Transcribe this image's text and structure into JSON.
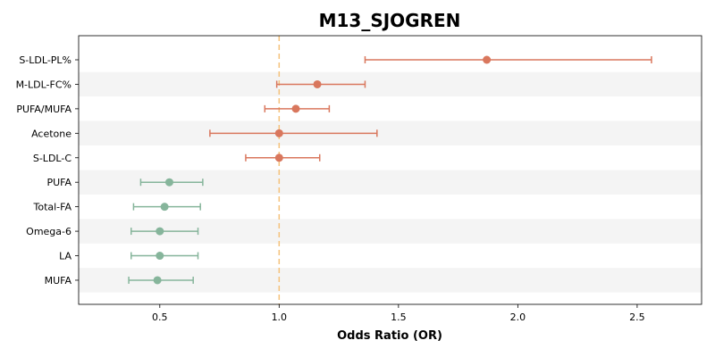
{
  "chart_data": {
    "type": "forest",
    "title": "M13_SJOGREN",
    "xlabel": "Odds Ratio (OR)",
    "ylabel": "",
    "xlim": [
      0.16,
      2.77
    ],
    "xticks": [
      0.5,
      1.0,
      1.5,
      2.0,
      2.5
    ],
    "xtick_labels": [
      "0.5",
      "1.0",
      "1.5",
      "2.0",
      "2.5"
    ],
    "reference_line": 1.0,
    "reference_color": "#f5c27a",
    "grid": false,
    "row_band_color": "#f4f4f4",
    "colors": {
      "risk": "#d9775d",
      "protective": "#86b59b"
    },
    "categories": [
      "S-LDL-PL%",
      "M-LDL-FC%",
      "PUFA/MUFA",
      "Acetone",
      "S-LDL-C",
      "PUFA",
      "Total-FA",
      "Omega-6",
      "LA",
      "MUFA"
    ],
    "or": [
      1.87,
      1.16,
      1.07,
      1.0,
      1.0,
      0.54,
      0.52,
      0.5,
      0.5,
      0.49
    ],
    "ci_lower": [
      1.36,
      0.99,
      0.94,
      0.71,
      0.86,
      0.42,
      0.39,
      0.38,
      0.38,
      0.37
    ],
    "ci_upper": [
      2.56,
      1.36,
      1.21,
      1.41,
      1.17,
      0.68,
      0.67,
      0.66,
      0.66,
      0.64
    ],
    "group": [
      "risk",
      "risk",
      "risk",
      "risk",
      "risk",
      "protective",
      "protective",
      "protective",
      "protective",
      "protective"
    ]
  }
}
